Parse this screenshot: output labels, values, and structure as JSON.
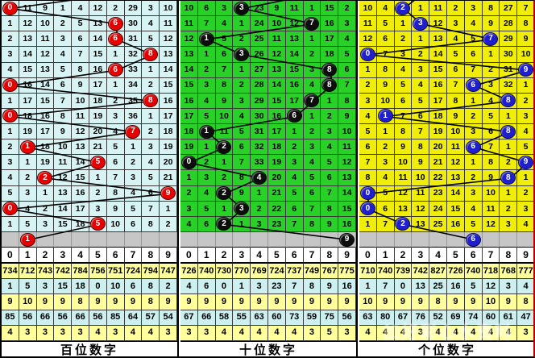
{
  "watermark": "加好彩心水资料",
  "panels": [
    {
      "id": "hundreds",
      "label": "百位数字",
      "bg": "#d7f3f3",
      "ball_color": "#e60000",
      "header": [
        "0",
        "1",
        "2",
        "3",
        "4",
        "5",
        "6",
        "7",
        "8",
        "9"
      ],
      "grid": [
        [
          0,
          11,
          9,
          1,
          4,
          12,
          2,
          29,
          3,
          10
        ],
        [
          1,
          12,
          10,
          2,
          5,
          13,
          6,
          30,
          4,
          11
        ],
        [
          2,
          13,
          11,
          3,
          6,
          14,
          6,
          31,
          5,
          12
        ],
        [
          3,
          14,
          12,
          4,
          7,
          15,
          1,
          32,
          8,
          13
        ],
        [
          4,
          15,
          13,
          5,
          8,
          16,
          6,
          33,
          1,
          14
        ],
        [
          0,
          16,
          14,
          6,
          9,
          17,
          1,
          34,
          2,
          15
        ],
        [
          1,
          17,
          15,
          7,
          10,
          18,
          2,
          35,
          8,
          16
        ],
        [
          0,
          18,
          16,
          8,
          11,
          19,
          3,
          36,
          1,
          17
        ],
        [
          1,
          19,
          17,
          9,
          12,
          20,
          4,
          7,
          2,
          18
        ],
        [
          2,
          1,
          18,
          10,
          13,
          21,
          5,
          1,
          3,
          19
        ],
        [
          3,
          1,
          19,
          11,
          14,
          5,
          6,
          2,
          4,
          20
        ],
        [
          4,
          2,
          2,
          12,
          15,
          1,
          7,
          3,
          5,
          21
        ],
        [
          5,
          3,
          1,
          13,
          16,
          2,
          8,
          4,
          6,
          9
        ],
        [
          0,
          4,
          2,
          14,
          17,
          3,
          9,
          5,
          7,
          1
        ],
        [
          1,
          5,
          3,
          15,
          18,
          5,
          10,
          6,
          8,
          2
        ]
      ],
      "ball_cols": [
        0,
        6,
        6,
        8,
        6,
        0,
        8,
        0,
        7,
        1,
        5,
        2,
        9,
        0,
        5
      ],
      "gray_ball_col": 1,
      "gray_ball_value": "1",
      "incoming_exit_col": 5.0,
      "summary": [
        [
          734,
          712,
          743,
          742,
          784,
          756,
          751,
          724,
          794,
          747
        ],
        [
          1,
          5,
          3,
          15,
          18,
          0,
          10,
          6,
          8,
          2
        ],
        [
          9,
          10,
          9,
          9,
          8,
          9,
          9,
          9,
          8,
          9
        ],
        [
          85,
          56,
          66,
          56,
          66,
          56,
          85,
          64,
          57,
          54
        ],
        [
          4,
          3,
          3,
          3,
          3,
          4,
          3,
          4,
          4,
          3
        ]
      ]
    },
    {
      "id": "tens",
      "label": "十位数字",
      "bg": "#28d028",
      "ball_color": "#0d0d0d",
      "header": [
        "0",
        "1",
        "2",
        "3",
        "4",
        "5",
        "6",
        "7",
        "8",
        "9"
      ],
      "grid": [
        [
          10,
          6,
          3,
          3,
          23,
          9,
          11,
          1,
          15,
          2
        ],
        [
          11,
          7,
          4,
          1,
          24,
          10,
          12,
          7,
          16,
          3
        ],
        [
          12,
          1,
          5,
          2,
          25,
          11,
          13,
          1,
          17,
          4
        ],
        [
          13,
          1,
          6,
          3,
          26,
          12,
          14,
          2,
          18,
          5
        ],
        [
          14,
          2,
          7,
          1,
          27,
          13,
          15,
          3,
          8,
          6
        ],
        [
          15,
          3,
          8,
          2,
          28,
          14,
          16,
          4,
          8,
          7
        ],
        [
          16,
          4,
          9,
          3,
          29,
          15,
          17,
          7,
          1,
          8
        ],
        [
          17,
          5,
          10,
          4,
          30,
          16,
          6,
          1,
          2,
          9
        ],
        [
          18,
          1,
          11,
          5,
          31,
          17,
          1,
          2,
          3,
          10
        ],
        [
          19,
          1,
          2,
          6,
          32,
          18,
          2,
          3,
          4,
          11
        ],
        [
          0,
          2,
          1,
          7,
          33,
          19,
          3,
          4,
          5,
          12
        ],
        [
          1,
          3,
          2,
          8,
          4,
          20,
          4,
          5,
          6,
          13
        ],
        [
          2,
          4,
          2,
          9,
          1,
          21,
          5,
          6,
          7,
          14
        ],
        [
          3,
          5,
          1,
          3,
          2,
          22,
          6,
          7,
          8,
          15
        ],
        [
          4,
          6,
          2,
          1,
          3,
          23,
          7,
          8,
          9,
          16
        ]
      ],
      "ball_cols": [
        3,
        7,
        1,
        3,
        8,
        8,
        7,
        6,
        1,
        2,
        0,
        4,
        2,
        3,
        2
      ],
      "gray_ball_col": 9,
      "gray_ball_value": "9",
      "incoming_exit_col": 6.6,
      "summary": [
        [
          726,
          740,
          730,
          770,
          769,
          724,
          737,
          749,
          767,
          775
        ],
        [
          4,
          6,
          0,
          1,
          3,
          23,
          7,
          8,
          9,
          16
        ],
        [
          9,
          9,
          9,
          9,
          9,
          9,
          9,
          9,
          9,
          9
        ],
        [
          67,
          66,
          58,
          55,
          63,
          60,
          73,
          59,
          75,
          56
        ],
        [
          3,
          3,
          4,
          4,
          4,
          4,
          4,
          3,
          5,
          3
        ]
      ]
    },
    {
      "id": "units",
      "label": "个位数字",
      "bg": "#f0ee08",
      "ball_color": "#1f1fd0",
      "header": [
        "0",
        "1",
        "2",
        "3",
        "4",
        "5",
        "6",
        "7",
        "8",
        "9"
      ],
      "grid": [
        [
          10,
          4,
          2,
          1,
          11,
          2,
          3,
          8,
          27,
          7
        ],
        [
          11,
          5,
          1,
          3,
          12,
          3,
          4,
          9,
          28,
          8
        ],
        [
          12,
          6,
          2,
          1,
          13,
          4,
          5,
          7,
          29,
          9
        ],
        [
          0,
          7,
          3,
          2,
          14,
          5,
          6,
          1,
          30,
          10
        ],
        [
          1,
          8,
          4,
          3,
          15,
          6,
          7,
          2,
          31,
          9
        ],
        [
          2,
          9,
          5,
          4,
          16,
          7,
          6,
          3,
          32,
          1
        ],
        [
          3,
          10,
          6,
          5,
          17,
          8,
          1,
          4,
          8,
          2
        ],
        [
          4,
          1,
          7,
          6,
          18,
          9,
          2,
          5,
          1,
          3
        ],
        [
          5,
          1,
          8,
          7,
          19,
          10,
          3,
          6,
          8,
          4
        ],
        [
          6,
          2,
          9,
          8,
          20,
          11,
          6,
          7,
          1,
          5
        ],
        [
          7,
          3,
          10,
          9,
          21,
          12,
          1,
          8,
          2,
          9
        ],
        [
          8,
          4,
          11,
          10,
          22,
          13,
          2,
          9,
          8,
          1
        ],
        [
          0,
          5,
          12,
          11,
          23,
          14,
          3,
          10,
          1,
          2
        ],
        [
          0,
          6,
          13,
          12,
          24,
          15,
          4,
          11,
          2,
          3
        ],
        [
          1,
          7,
          2,
          13,
          25,
          16,
          5,
          12,
          3,
          4
        ]
      ],
      "ball_cols": [
        2,
        3,
        7,
        0,
        9,
        6,
        8,
        1,
        8,
        6,
        9,
        8,
        0,
        0,
        2
      ],
      "gray_ball_col": 6,
      "gray_ball_value": "6",
      "incoming_exit_col": 3.3,
      "summary": [
        [
          710,
          740,
          739,
          742,
          827,
          726,
          740,
          718,
          768,
          777
        ],
        [
          1,
          7,
          0,
          13,
          25,
          16,
          5,
          12,
          3,
          4
        ],
        [
          10,
          9,
          9,
          9,
          8,
          9,
          9,
          10,
          9,
          8
        ],
        [
          63,
          80,
          67,
          76,
          52,
          69,
          74,
          60,
          61,
          47
        ],
        [
          4,
          4,
          4,
          3,
          4,
          4,
          4,
          4,
          4,
          3
        ]
      ]
    }
  ]
}
